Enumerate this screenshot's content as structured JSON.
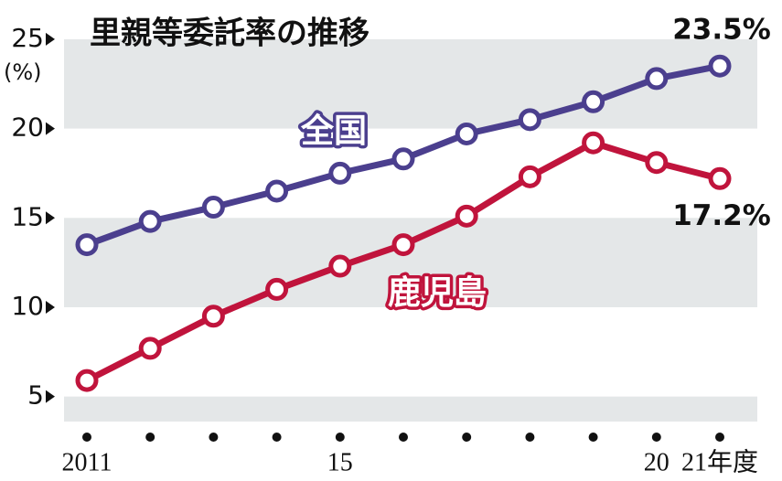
{
  "chart_data": {
    "type": "line",
    "title": "里親等委託率の推移",
    "y_unit": "(%)",
    "categories": [
      "2011",
      null,
      null,
      null,
      "15",
      null,
      null,
      null,
      null,
      "20",
      "21年度"
    ],
    "series": [
      {
        "name": "全国",
        "color": "#4b3f8e",
        "values": [
          13.5,
          14.8,
          15.6,
          16.5,
          17.5,
          18.3,
          19.7,
          20.5,
          21.5,
          22.8,
          23.5
        ],
        "value_labels": [
          null,
          null,
          null,
          null,
          null,
          null,
          null,
          null,
          null,
          null,
          "23.5%"
        ]
      },
      {
        "name": "鹿児島",
        "color": "#c0143c",
        "values": [
          5.9,
          7.7,
          9.5,
          11.0,
          12.3,
          13.5,
          15.1,
          17.3,
          19.2,
          18.1,
          17.2
        ],
        "value_labels": [
          null,
          null,
          null,
          null,
          null,
          null,
          null,
          null,
          null,
          null,
          "17.2%"
        ]
      }
    ],
    "ylim": [
      3.6,
      25.2
    ],
    "yticks": [
      5,
      10,
      15,
      20,
      25
    ],
    "grid": true
  }
}
